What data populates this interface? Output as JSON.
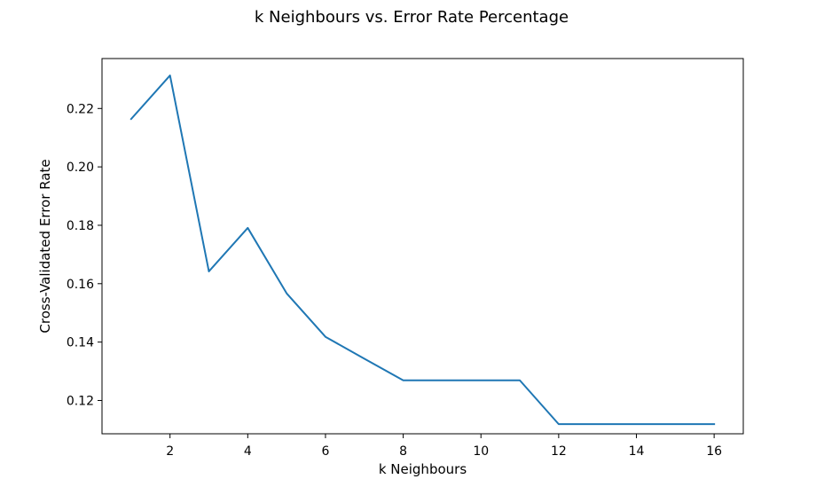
{
  "chart_data": {
    "type": "line",
    "title": "k Neighbours vs. Error Rate Percentage",
    "xlabel": "k Neighbours",
    "ylabel": "Cross-Validated Error Rate",
    "xlim": [
      0.25,
      16.75
    ],
    "ylim": [
      0.1086,
      0.2371
    ],
    "xticks": [
      2,
      4,
      6,
      8,
      10,
      12,
      14,
      16
    ],
    "yticks": [
      0.12,
      0.14,
      0.16,
      0.18,
      0.2,
      0.22
    ],
    "ytick_labels": [
      "0.12",
      "0.14",
      "0.16",
      "0.18",
      "0.20",
      "0.22"
    ],
    "grid": false,
    "series": [
      {
        "color": "#1f77b4",
        "x": [
          1,
          2,
          3,
          4,
          5,
          6,
          7,
          8,
          9,
          10,
          11,
          12,
          13,
          14,
          15,
          16
        ],
        "values": [
          0.2164,
          0.2313,
          0.1642,
          0.1791,
          0.1567,
          0.1418,
          0.1343,
          0.1269,
          0.1269,
          0.1269,
          0.1269,
          0.1119,
          0.1119,
          0.1119,
          0.1119,
          0.1119
        ]
      }
    ]
  }
}
